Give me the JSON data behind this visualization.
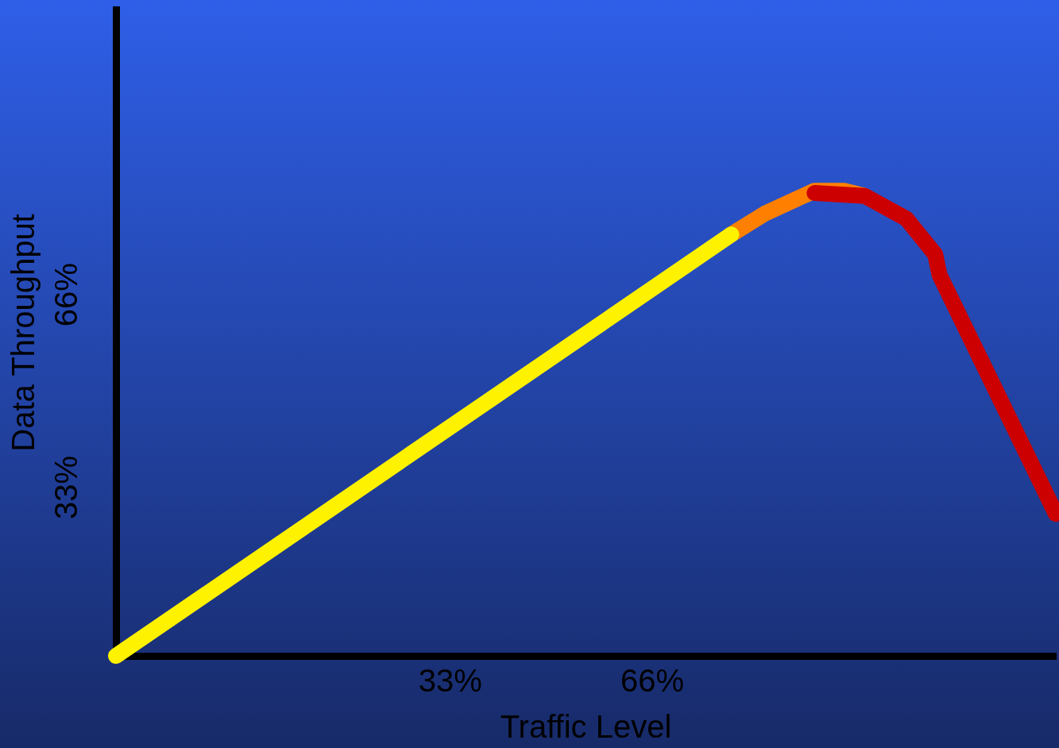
{
  "chart_data": {
    "type": "line",
    "xlabel": "Traffic Level",
    "ylabel": "Data Throughput",
    "xlim": [
      -21.6,
      131.9
    ],
    "ylim": [
      4.2,
      114.8
    ],
    "xticks": [
      {
        "value": 33,
        "label": "33%"
      },
      {
        "value": 66,
        "label": "66%"
      }
    ],
    "yticks": [
      {
        "value": 33,
        "label": "33%"
      },
      {
        "value": 66,
        "label": "66%"
      }
    ],
    "marker": "none",
    "line_style": "solid",
    "series": [
      {
        "color": "#fff200",
        "x": [
          -21.6,
          78.9
        ],
        "values": [
          4.2,
          76.3
        ]
      },
      {
        "color": "#cc0000",
        "x": [
          92.5,
          100.7,
          107.5,
          112.2,
          112.9,
          131.9
        ],
        "values": [
          83.4,
          82.9,
          79.0,
          72.9,
          69.4,
          28.5
        ]
      },
      {
        "color": "#ff8000",
        "x": [
          78.9,
          84.4,
          92.5,
          97.3,
          100.7
        ],
        "values": [
          76.3,
          79.9,
          83.8,
          83.8,
          82.9
        ]
      }
    ]
  }
}
